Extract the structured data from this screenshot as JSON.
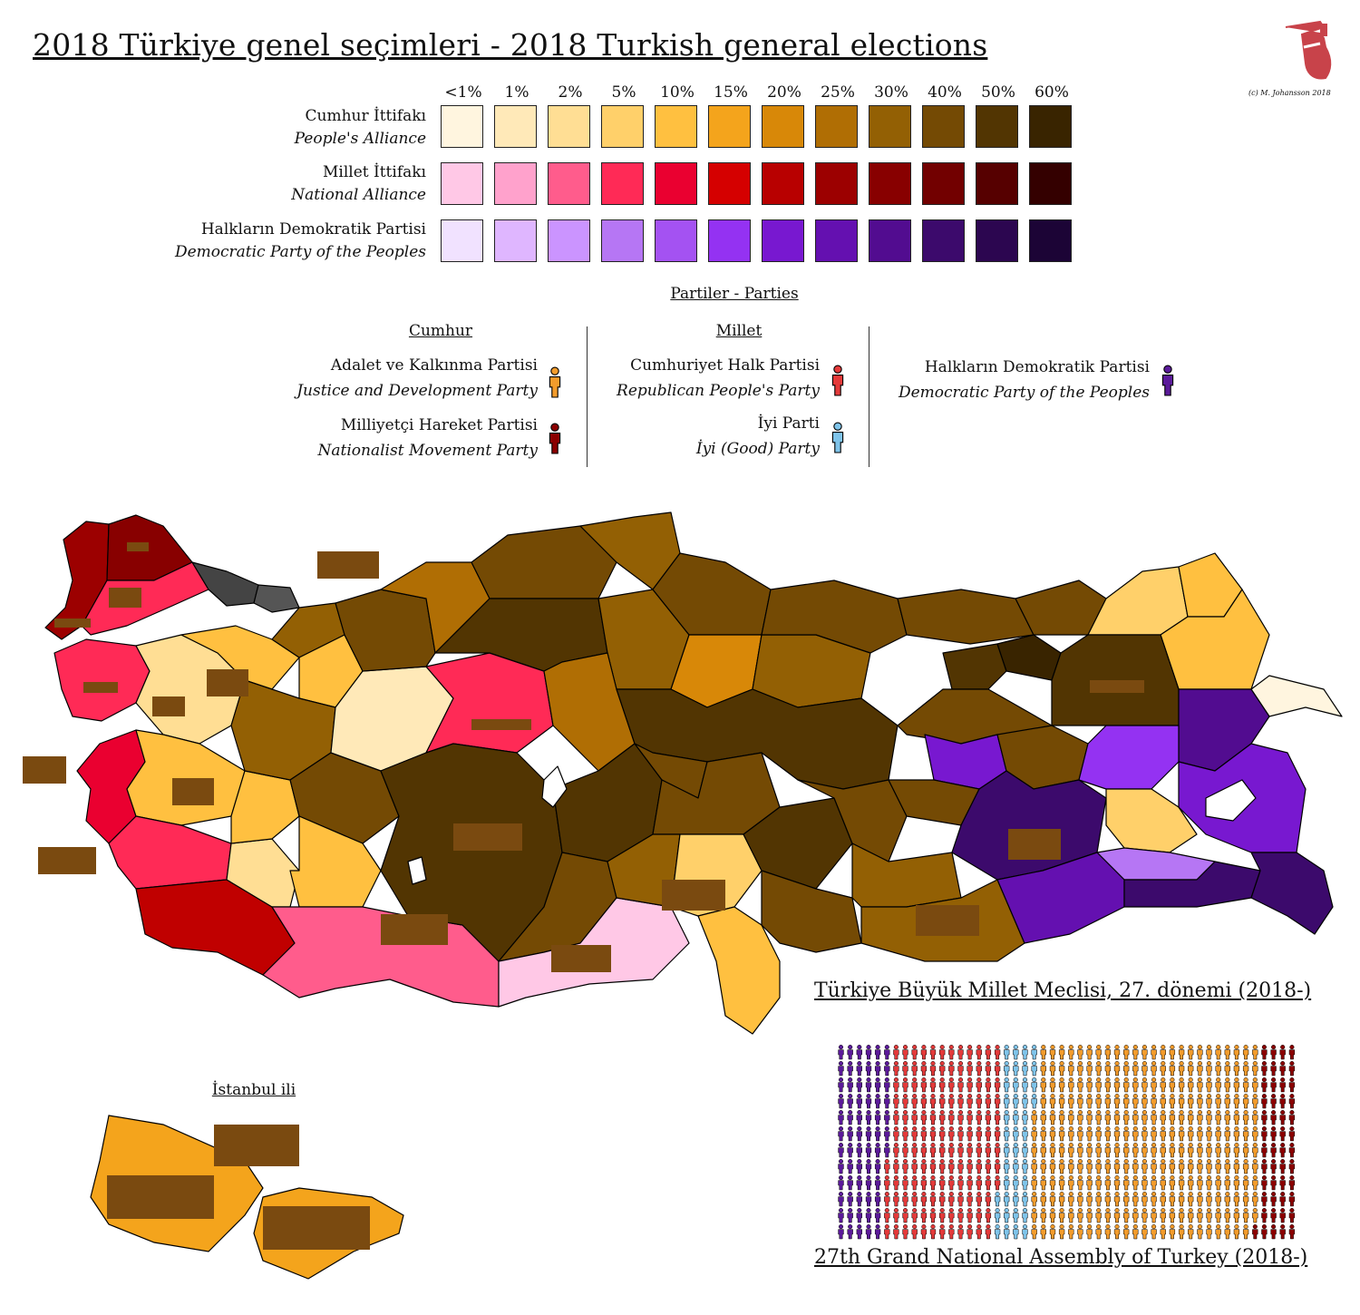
{
  "title": "2018 Türkiye genel seçimleri - 2018 Turkish general elections",
  "copyright": "(c) M. Johansson 2018",
  "scale": {
    "labels": [
      "<1%",
      "1%",
      "2%",
      "5%",
      "10%",
      "15%",
      "20%",
      "25%",
      "30%",
      "40%",
      "50%",
      "60%"
    ],
    "rows": [
      {
        "name": "Cumhur İttifakı",
        "name_en": "People's Alliance",
        "colors": [
          "#fff5df",
          "#ffe9b8",
          "#ffde94",
          "#ffd06a",
          "#ffc040",
          "#f4a41c",
          "#d88808",
          "#b06e04",
          "#936004",
          "#744a04",
          "#523502",
          "#392400"
        ]
      },
      {
        "name": "Millet İttifakı",
        "name_en": "National Alliance",
        "colors": [
          "#ffc8e6",
          "#ffa2cc",
          "#ff5c8c",
          "#ff2a56",
          "#ea0030",
          "#d50000",
          "#b80000",
          "#9c0000",
          "#880000",
          "#720000",
          "#560000",
          "#340000"
        ]
      },
      {
        "name": "Halkların Demokratik Partisi",
        "name_en": "Democratic Party of the Peoples",
        "colors": [
          "#f1e2ff",
          "#dfb6ff",
          "#cb94ff",
          "#b676f4",
          "#a452f2",
          "#9432f2",
          "#7818d0",
          "#6410b0",
          "#520c90",
          "#3c0a6c",
          "#2c0650",
          "#1c0436"
        ]
      }
    ]
  },
  "parties": {
    "heading": "Partiler - Parties",
    "groups": [
      {
        "heading": "Cumhur",
        "items": [
          {
            "name": "Adalet ve Kalkınma Partisi",
            "name_en": "Justice and Development Party",
            "color": "#f39c2c"
          },
          {
            "name": "Milliyetçi Hareket Partisi",
            "name_en": "Nationalist Movement Party",
            "color": "#8b0000"
          }
        ]
      },
      {
        "heading": "Millet",
        "items": [
          {
            "name": "Cumhuriyet Halk Partisi",
            "name_en": "Republican People's Party",
            "color": "#e43a3a"
          },
          {
            "name": "İyi Parti",
            "name_en": "İyi (Good) Party",
            "color": "#7fc4ea"
          }
        ]
      },
      {
        "heading": "",
        "items": [
          {
            "name": "Halkların Demokratik Partisi",
            "name_en": "Democratic Party of the Peoples",
            "color": "#5b1a9a"
          }
        ]
      }
    ]
  },
  "istanbul": {
    "title": "İstanbul ili"
  },
  "parliament": {
    "title_tr": "Türkiye Büyük Millet Meclisi, 27. dönemi (2018-)",
    "title_en": "27th Grand National Assembly of Turkey (2018-)",
    "party_colors": {
      "HDP": "#5b1a9a",
      "CHP": "#e43a3a",
      "IYI": "#7fc4ea",
      "AKP": "#f39c2c",
      "MHP": "#8b0000"
    },
    "seats": {
      "HDP": 67,
      "CHP": 146,
      "IYI": 43,
      "AKP": 295,
      "MHP": 49
    }
  }
}
